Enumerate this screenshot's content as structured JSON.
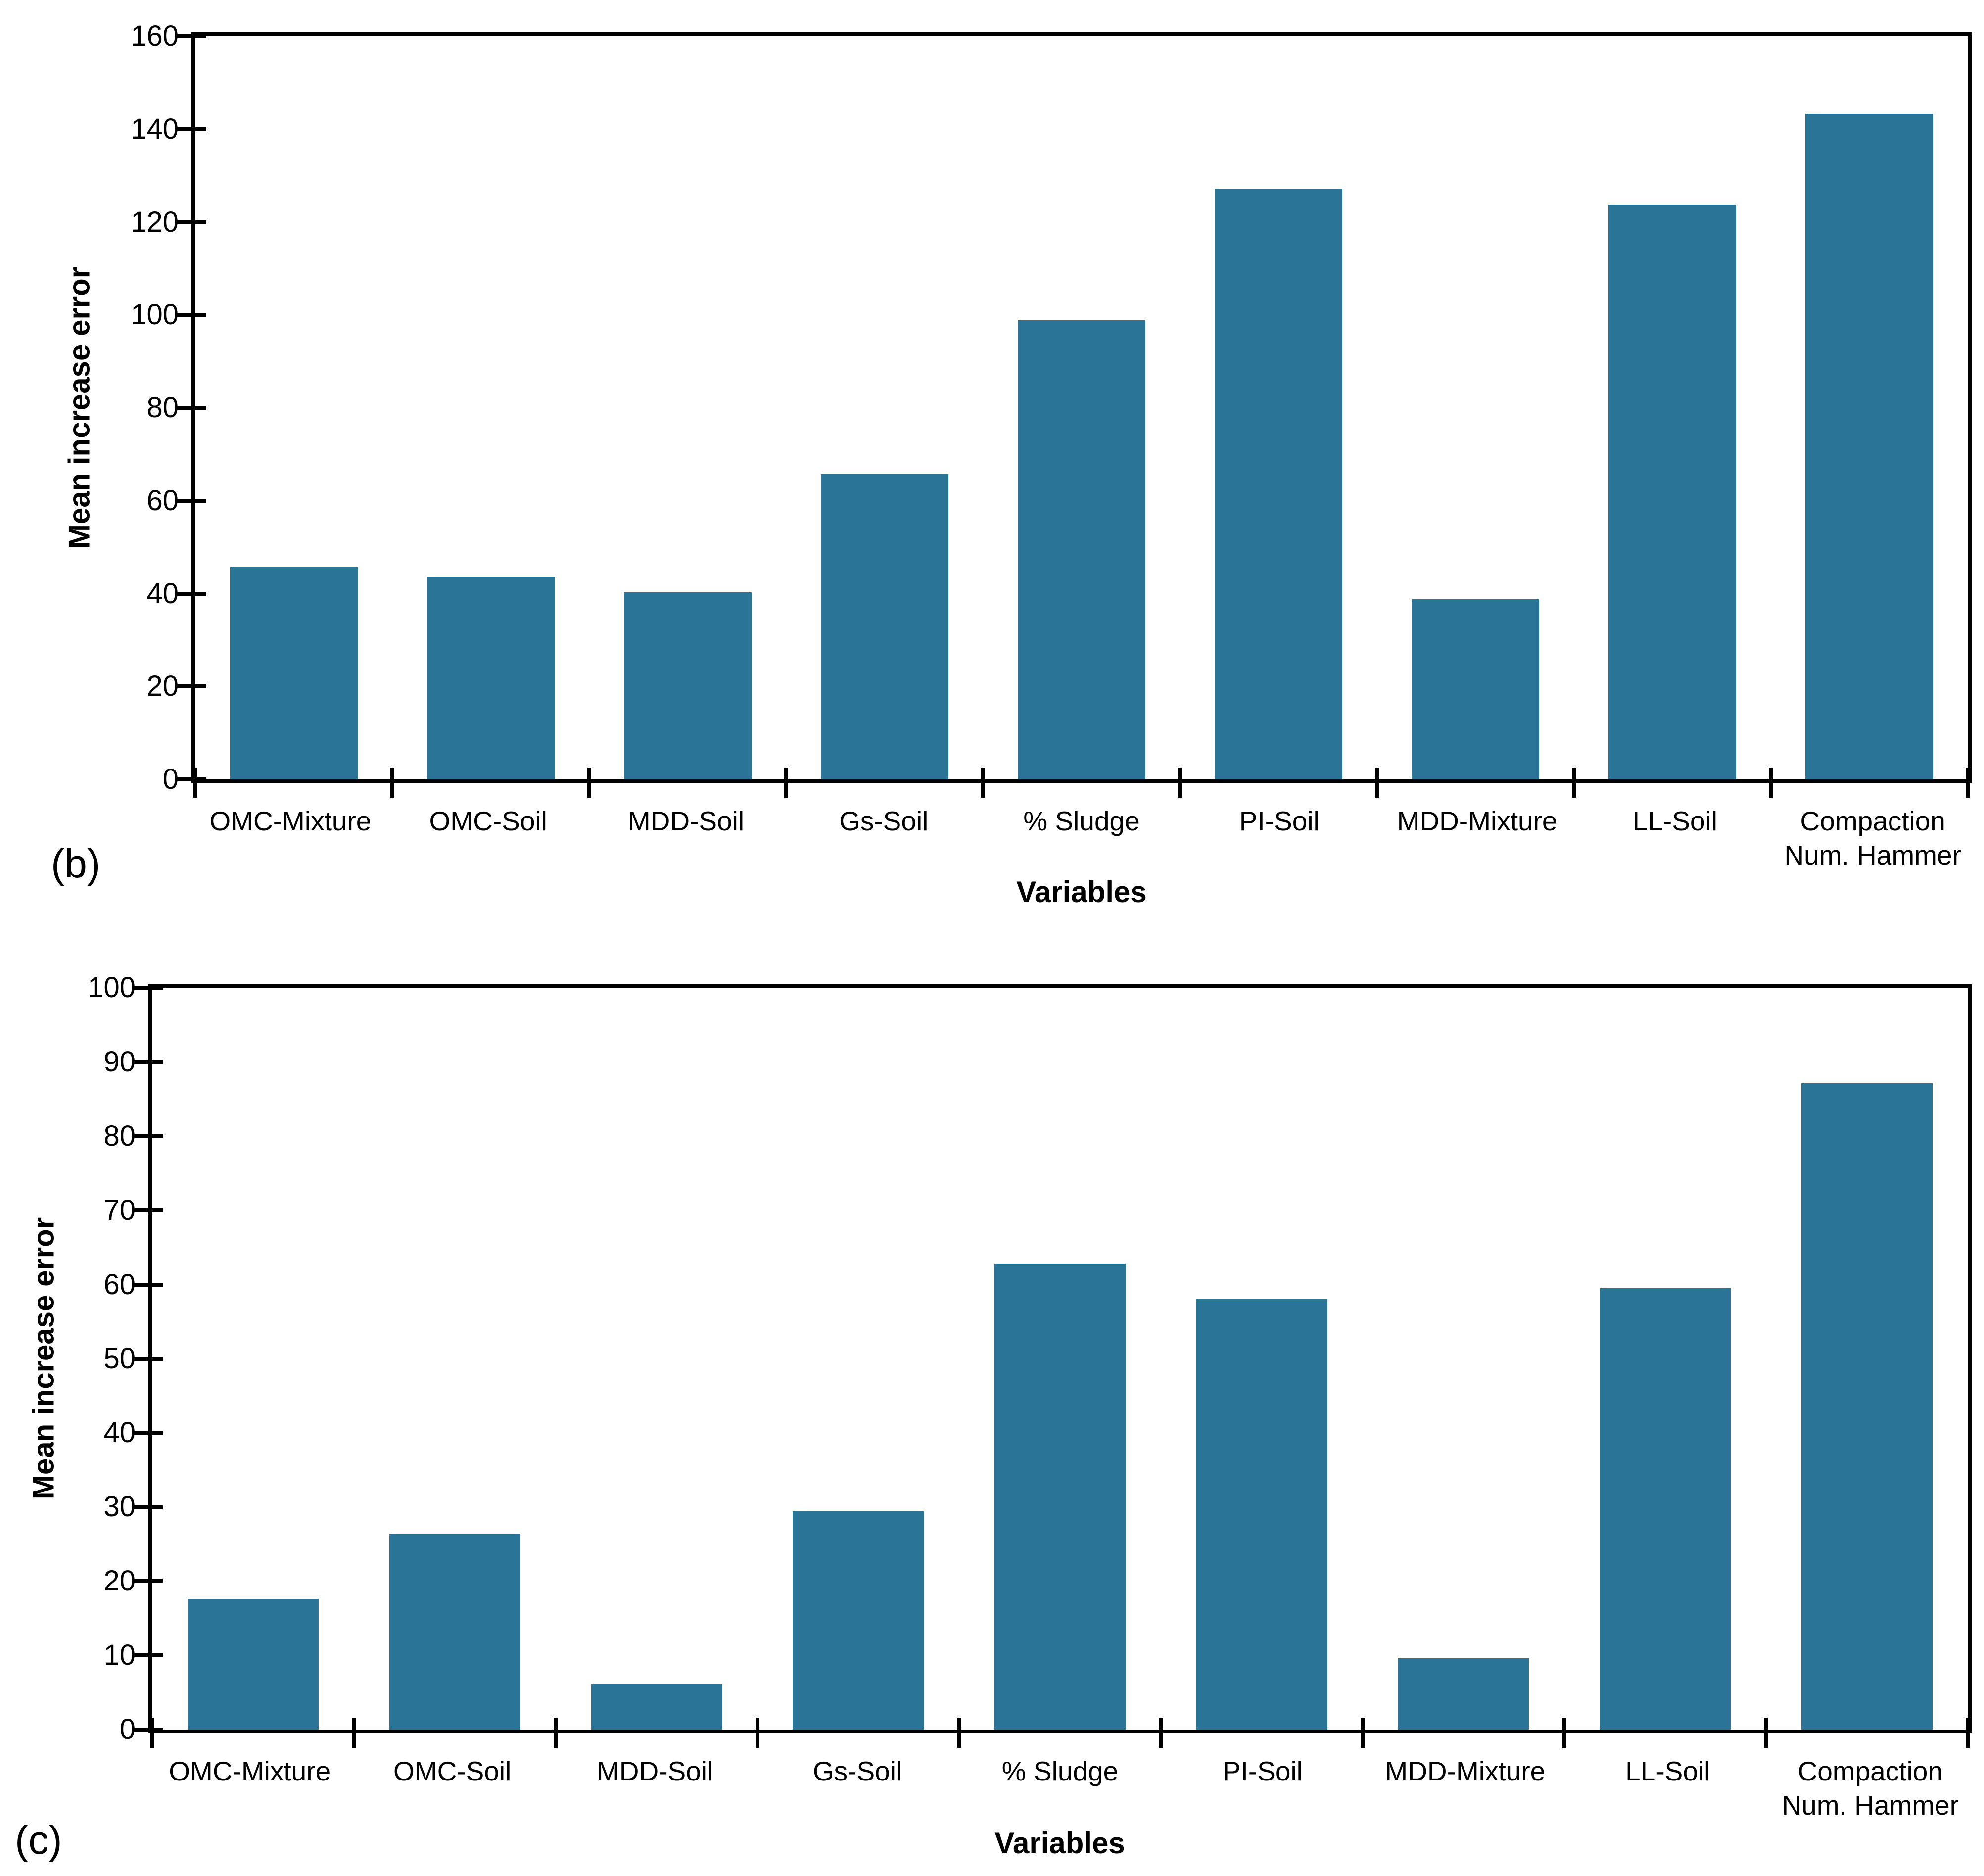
{
  "styles": {
    "bar_color": "#2A7497",
    "axis_color": "#000000",
    "text_color": "#000000",
    "background": "#FFFFFF"
  },
  "chart_data": [
    {
      "type": "bar",
      "panel_label": "(b)",
      "title": "",
      "xlabel": "Variables",
      "ylabel": "Mean increase error",
      "categories": [
        "OMC-Mixture",
        "OMC-Soil",
        "MDD-Soil",
        "Gs-Soil",
        "% Sludge",
        "PI-Soil",
        "MDD-Mixture",
        "LL-Soil",
        "Compaction\nNum. Hammer"
      ],
      "values": [
        45.7,
        43.6,
        40.3,
        65.7,
        98.9,
        127.2,
        38.8,
        123.7,
        143.3
      ],
      "ylim": [
        0,
        160
      ],
      "ytick_step": 20,
      "ytick_labels": [
        "0",
        "20",
        "40",
        "60",
        "80",
        "100",
        "120",
        "140",
        "160"
      ],
      "grid": false,
      "legend": false,
      "bar_color": "#2A7497"
    },
    {
      "type": "bar",
      "panel_label": "(c)",
      "title": "",
      "xlabel": "Variables",
      "ylabel": "Mean increase error",
      "categories": [
        "OMC-Mixture",
        "OMC-Soil",
        "MDD-Soil",
        "Gs-Soil",
        "% Sludge",
        "PI-Soil",
        "MDD-Mixture",
        "LL-Soil",
        "Compaction\nNum. Hammer"
      ],
      "values": [
        17.6,
        26.4,
        6.1,
        29.4,
        62.8,
        58.0,
        9.6,
        59.5,
        87.1
      ],
      "ylim": [
        0,
        100
      ],
      "ytick_step": 10,
      "ytick_labels": [
        "0",
        "10",
        "20",
        "30",
        "40",
        "50",
        "60",
        "70",
        "80",
        "90",
        "100"
      ],
      "grid": false,
      "legend": false,
      "bar_color": "#2A7497"
    }
  ]
}
